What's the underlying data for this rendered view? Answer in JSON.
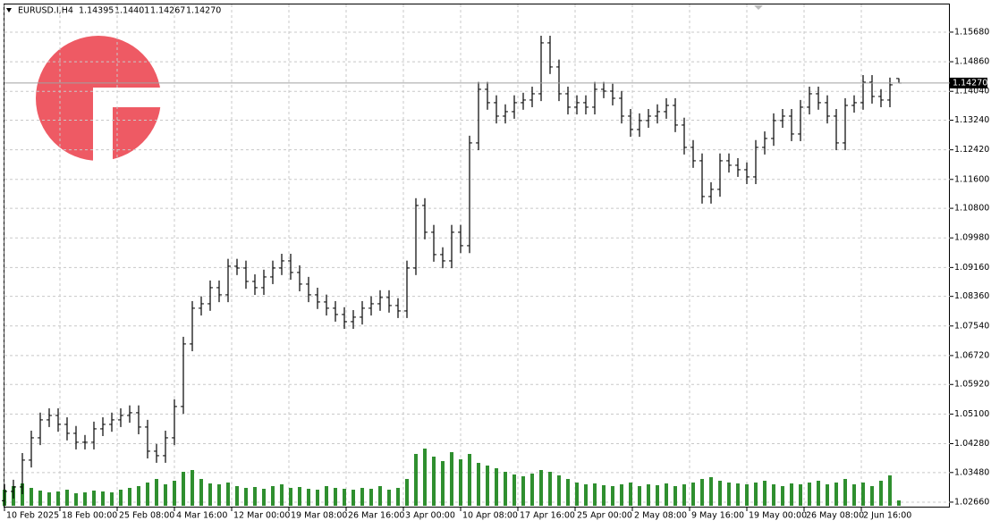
{
  "chart_data": {
    "type": "ohlc",
    "symbol": "EURUSD.I,H4",
    "last_bar_labels": [
      "1.14395",
      "1.14401",
      "1.14267",
      "1.14270"
    ],
    "color": "#000000",
    "volume_color": "#2f8f2f",
    "grid": true,
    "xlim": [
      -0.1,
      105.7
    ],
    "ylim": [
      1.0251,
      1.1657
    ],
    "vlim": [
      0,
      100000
    ],
    "yticks": [
      {
        "value": 1.1568,
        "label": "1.15680"
      },
      {
        "value": 1.1486,
        "label": "1.14860"
      },
      {
        "value": 1.1404,
        "label": "1.14040"
      },
      {
        "value": 1.1324,
        "label": "1.13240"
      },
      {
        "value": 1.1242,
        "label": "1.12420"
      },
      {
        "value": 1.116,
        "label": "1.11600"
      },
      {
        "value": 1.108,
        "label": "1.10800"
      },
      {
        "value": 1.0998,
        "label": "1.09980"
      },
      {
        "value": 1.0916,
        "label": "1.09160"
      },
      {
        "value": 1.0836,
        "label": "1.08360"
      },
      {
        "value": 1.0754,
        "label": "1.07540"
      },
      {
        "value": 1.0672,
        "label": "1.06720"
      },
      {
        "value": 1.0592,
        "label": "1.05920"
      },
      {
        "value": 1.051,
        "label": "1.05100"
      },
      {
        "value": 1.0428,
        "label": "1.04280"
      },
      {
        "value": 1.0348,
        "label": "1.03480"
      },
      {
        "value": 1.0266,
        "label": "1.02660"
      }
    ],
    "xticks": [
      {
        "value": 0,
        "label": "10 Feb 2025"
      },
      {
        "value": 6.2,
        "label": "18 Feb 00:00"
      },
      {
        "value": 12.6,
        "label": "25 Feb 08:00"
      },
      {
        "value": 19,
        "label": "4 Mar 16:00"
      },
      {
        "value": 25.4,
        "label": "12 Mar 00:00"
      },
      {
        "value": 31.8,
        "label": "19 Mar 08:00"
      },
      {
        "value": 38.2,
        "label": "26 Mar 16:00"
      },
      {
        "value": 44.6,
        "label": "3 Apr 00:00"
      },
      {
        "value": 51,
        "label": "10 Apr 08:00"
      },
      {
        "value": 57.4,
        "label": "17 Apr 16:00"
      },
      {
        "value": 63.8,
        "label": "25 Apr 00:00"
      },
      {
        "value": 70.2,
        "label": "2 May 08:00"
      },
      {
        "value": 76.6,
        "label": "9 May 16:00"
      },
      {
        "value": 83,
        "label": "19 May 00:00"
      },
      {
        "value": 89.4,
        "label": "26 May 08:00"
      },
      {
        "value": 95.8,
        "label": "2 Jun 16:00"
      }
    ],
    "open": [
      1.027,
      1.02957,
      1.03081,
      1.03824,
      1.04442,
      1.04938,
      1.05061,
      1.04814,
      1.04566,
      1.04319,
      1.04319,
      1.0469,
      1.04814,
      1.04938,
      1.05061,
      1.05136,
      1.0474,
      1.04071,
      1.03947,
      1.04442,
      1.05309,
      1.07042,
      1.08032,
      1.08155,
      1.08601,
      1.08403,
      1.09195,
      1.09145,
      1.08774,
      1.08601,
      1.08898,
      1.09145,
      1.09343,
      1.09022,
      1.087,
      1.08403,
      1.08205,
      1.08032,
      1.07858,
      1.0766,
      1.07784,
      1.08032,
      1.08155,
      1.08329,
      1.08106,
      1.07957,
      1.09145,
      1.10878,
      1.10136,
      1.09517,
      1.09343,
      1.10136,
      1.09764,
      1.12611,
      1.14096,
      1.13725,
      1.13353,
      1.13477,
      1.13725,
      1.13799,
      1.13972,
      1.15383,
      1.14715,
      1.13972,
      1.13601,
      1.13725,
      1.13601,
      1.14096,
      1.14046,
      1.13848,
      1.13353,
      1.12982,
      1.1323,
      1.13353,
      1.13477,
      1.1365,
      1.13106,
      1.12487,
      1.12116,
      1.11126,
      1.11324,
      1.12116,
      1.11992,
      1.11868,
      1.1167,
      1.12487,
      1.12734,
      1.1323,
      1.13353,
      1.12858,
      1.13601,
      1.13972,
      1.13725,
      1.13353,
      1.12611,
      1.1365,
      1.13725,
      1.14294,
      1.13898,
      1.13799,
      1.14395
    ],
    "high": [
      1.0316,
      1.0328,
      1.0402,
      1.0464,
      1.0514,
      1.0526,
      1.0526,
      1.0501,
      1.0477,
      1.0452,
      1.0489,
      1.0501,
      1.0514,
      1.0526,
      1.0534,
      1.0534,
      1.0494,
      1.0427,
      1.0464,
      1.0551,
      1.0724,
      1.0823,
      1.0836,
      1.088,
      1.088,
      1.094,
      1.094,
      1.0935,
      1.0897,
      1.091,
      1.0935,
      1.0954,
      1.0954,
      1.0922,
      1.089,
      1.086,
      1.0841,
      1.0823,
      1.0806,
      1.0798,
      1.0823,
      1.0836,
      1.0853,
      1.0853,
      1.0831,
      1.0935,
      1.1108,
      1.1108,
      1.1034,
      1.0972,
      1.1034,
      1.1034,
      1.1281,
      1.143,
      1.143,
      1.1393,
      1.1368,
      1.1393,
      1.14,
      1.1417,
      1.1558,
      1.1558,
      1.1492,
      1.1417,
      1.1393,
      1.1393,
      1.143,
      1.143,
      1.1425,
      1.1405,
      1.1355,
      1.1343,
      1.1355,
      1.1368,
      1.1385,
      1.1385,
      1.1331,
      1.1269,
      1.1232,
      1.1152,
      1.1232,
      1.1232,
      1.1219,
      1.1207,
      1.1269,
      1.1293,
      1.1343,
      1.1355,
      1.1355,
      1.138,
      1.1417,
      1.1417,
      1.1393,
      1.1355,
      1.1385,
      1.1393,
      1.1449,
      1.1449,
      1.141,
      1.1442,
      1.14401
    ],
    "low": [
      1.0255,
      1.0276,
      1.0288,
      1.0362,
      1.0424,
      1.0474,
      1.0461,
      1.0437,
      1.0412,
      1.0412,
      1.0412,
      1.0449,
      1.0461,
      1.0474,
      1.0486,
      1.0454,
      1.0387,
      1.0375,
      1.0375,
      1.0424,
      1.0511,
      1.0684,
      1.0783,
      1.0796,
      1.082,
      1.082,
      1.0895,
      1.0857,
      1.084,
      1.084,
      1.087,
      1.0895,
      1.0882,
      1.085,
      1.082,
      1.0801,
      1.0783,
      1.0766,
      1.0746,
      1.0746,
      1.0758,
      1.0783,
      1.0796,
      1.0791,
      1.0776,
      1.0776,
      1.0895,
      1.0994,
      1.0932,
      1.0914,
      1.0914,
      1.0956,
      1.0956,
      1.1241,
      1.1353,
      1.1315,
      1.1315,
      1.1328,
      1.1353,
      1.136,
      1.1377,
      1.1452,
      1.1377,
      1.134,
      1.134,
      1.134,
      1.134,
      1.1385,
      1.1365,
      1.1315,
      1.1278,
      1.1278,
      1.1303,
      1.1315,
      1.1328,
      1.1291,
      1.1229,
      1.1192,
      1.1093,
      1.1093,
      1.1112,
      1.1179,
      1.1167,
      1.1147,
      1.1147,
      1.1229,
      1.1253,
      1.1303,
      1.1266,
      1.1266,
      1.134,
      1.1353,
      1.1315,
      1.1241,
      1.1241,
      1.1345,
      1.1353,
      1.137,
      1.136,
      1.136,
      1.14267
    ],
    "close": [
      1.02957,
      1.03081,
      1.03824,
      1.04442,
      1.04938,
      1.05061,
      1.04814,
      1.04566,
      1.04319,
      1.04319,
      1.0469,
      1.04814,
      1.04938,
      1.05061,
      1.05136,
      1.0474,
      1.04071,
      1.03947,
      1.04442,
      1.05309,
      1.07042,
      1.08032,
      1.08155,
      1.08601,
      1.08403,
      1.09195,
      1.09145,
      1.08774,
      1.08601,
      1.08898,
      1.09145,
      1.09343,
      1.09022,
      1.087,
      1.08403,
      1.08205,
      1.08032,
      1.07858,
      1.0766,
      1.07784,
      1.08032,
      1.08155,
      1.08329,
      1.08106,
      1.07957,
      1.09145,
      1.10878,
      1.10136,
      1.09517,
      1.09343,
      1.10136,
      1.09764,
      1.12611,
      1.14096,
      1.13725,
      1.13353,
      1.13477,
      1.13725,
      1.13799,
      1.13972,
      1.15383,
      1.14715,
      1.13972,
      1.13601,
      1.13725,
      1.13601,
      1.14096,
      1.14046,
      1.13848,
      1.13353,
      1.12982,
      1.1323,
      1.13353,
      1.13477,
      1.1365,
      1.13106,
      1.12487,
      1.12116,
      1.11126,
      1.11324,
      1.12116,
      1.11992,
      1.11868,
      1.1167,
      1.12487,
      1.12734,
      1.1323,
      1.13353,
      1.12858,
      1.13601,
      1.13972,
      1.13725,
      1.13353,
      1.12611,
      1.1365,
      1.13725,
      1.14294,
      1.13898,
      1.13799,
      1.1422,
      1.1427
    ],
    "volume": [
      18000,
      22000,
      25000,
      20000,
      17000,
      15000,
      16000,
      18000,
      14000,
      15000,
      17000,
      16000,
      15000,
      18000,
      20000,
      22000,
      26000,
      30000,
      24000,
      28000,
      38000,
      40000,
      30000,
      25000,
      24000,
      26000,
      22000,
      20000,
      21000,
      19000,
      22000,
      24000,
      20000,
      21000,
      19000,
      18000,
      22000,
      20000,
      19000,
      18000,
      20000,
      19000,
      22000,
      18000,
      20000,
      30000,
      58000,
      64000,
      55000,
      50000,
      60000,
      52000,
      58000,
      48000,
      45000,
      42000,
      38000,
      35000,
      33000,
      36000,
      40000,
      38000,
      34000,
      30000,
      26000,
      24000,
      25000,
      23000,
      22000,
      24000,
      26000,
      22000,
      24000,
      23000,
      25000,
      22000,
      24000,
      26000,
      30000,
      32000,
      28000,
      26000,
      25000,
      24000,
      26000,
      28000,
      24000,
      22000,
      25000,
      24000,
      26000,
      28000,
      24000,
      26000,
      30000,
      24000,
      26000,
      22000,
      28000,
      34000,
      6000
    ]
  }
}
